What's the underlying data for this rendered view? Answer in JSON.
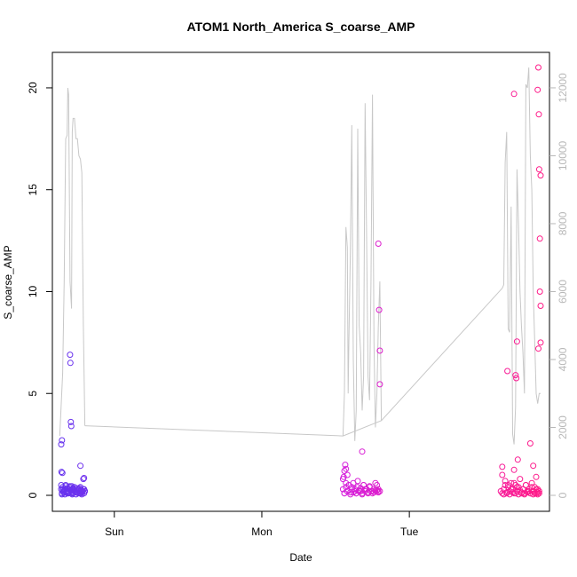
{
  "chart_data": {
    "type": "scatter",
    "title": "ATOM1 North_America S_coarse_AMP",
    "xlabel": "Date",
    "ylabel": "S_coarse_AMP",
    "y2label": "",
    "x_ticks": [
      {
        "label": "Sun",
        "day": 1.0
      },
      {
        "label": "Mon",
        "day": 2.0
      },
      {
        "label": "Tue",
        "day": 3.0
      }
    ],
    "xlim": [
      0.58,
      3.95
    ],
    "ylim": [
      0,
      21
    ],
    "y_ticks": [
      0,
      5,
      10,
      15,
      20
    ],
    "y2lim": [
      0,
      12600
    ],
    "y2_ticks": [
      0,
      2000,
      4000,
      6000,
      8000,
      10000,
      12000
    ],
    "grid": false,
    "legend": "none",
    "series": [
      {
        "kind": "points",
        "color_start": "#6633ee",
        "color_mid": "#cc22ee",
        "color_end": "#ff1a88",
        "x": [
          0.64,
          0.645,
          0.65,
          0.655,
          0.66,
          0.665,
          0.67,
          0.675,
          0.68,
          0.685,
          0.69,
          0.695,
          0.7,
          0.705,
          0.71,
          0.715,
          0.72,
          0.725,
          0.73,
          0.735,
          0.74,
          0.745,
          0.75,
          0.755,
          0.76,
          0.765,
          0.77,
          0.775,
          0.78,
          0.785,
          0.79,
          0.795,
          0.8,
          0.64,
          0.65,
          0.66,
          0.67,
          0.68,
          0.7,
          0.72,
          0.74,
          0.76,
          0.78,
          0.8,
          0.645,
          0.655,
          0.665,
          0.675,
          0.685,
          0.695,
          0.705,
          0.715,
          0.725,
          0.735,
          0.745,
          0.755,
          0.765,
          0.775,
          0.785,
          0.795,
          0.645,
          0.64,
          0.648,
          0.642,
          0.7,
          0.702,
          0.705,
          0.708,
          0.712,
          0.79,
          0.795,
          0.77,
          0.782,
          0.755,
          0.725,
          0.69,
          0.715,
          2.55,
          2.56,
          2.57,
          2.58,
          2.59,
          2.6,
          2.61,
          2.62,
          2.63,
          2.64,
          2.65,
          2.66,
          2.67,
          2.68,
          2.69,
          2.7,
          2.71,
          2.72,
          2.73,
          2.74,
          2.75,
          2.76,
          2.77,
          2.78,
          2.79,
          2.8,
          2.55,
          2.57,
          2.59,
          2.61,
          2.63,
          2.65,
          2.67,
          2.69,
          2.71,
          2.73,
          2.75,
          2.77,
          2.79,
          2.56,
          2.58,
          2.6,
          2.62,
          2.64,
          2.66,
          2.68,
          2.7,
          2.72,
          2.74,
          2.76,
          2.78,
          2.555,
          2.56,
          2.565,
          2.57,
          2.58,
          2.68,
          2.79,
          2.795,
          2.8,
          2.8,
          2.79,
          3.62,
          3.63,
          3.64,
          3.65,
          3.66,
          3.67,
          3.68,
          3.69,
          3.7,
          3.71,
          3.72,
          3.73,
          3.74,
          3.75,
          3.76,
          3.77,
          3.78,
          3.79,
          3.8,
          3.81,
          3.82,
          3.83,
          3.84,
          3.85,
          3.86,
          3.87,
          3.88,
          3.63,
          3.65,
          3.67,
          3.69,
          3.71,
          3.73,
          3.75,
          3.77,
          3.79,
          3.81,
          3.83,
          3.85,
          3.87,
          3.64,
          3.66,
          3.68,
          3.7,
          3.72,
          3.74,
          3.76,
          3.78,
          3.8,
          3.82,
          3.84,
          3.86,
          3.87,
          3.88,
          3.875,
          3.87,
          3.878,
          3.88,
          3.89,
          3.885,
          3.885,
          3.89,
          3.89,
          3.875,
          3.71,
          3.72,
          3.725,
          3.73,
          3.735,
          3.665,
          3.71,
          3.82,
          3.63,
          3.84,
          3.86
        ],
        "y": [
          0.3,
          0.1,
          0.4,
          0.2,
          0.25,
          0.05,
          0.5,
          0.15,
          0.35,
          0.2,
          0.1,
          0.3,
          0.45,
          0.2,
          0.15,
          0.3,
          0.1,
          0.25,
          0.4,
          0.2,
          0.05,
          0.35,
          0.15,
          0.3,
          0.2,
          0.1,
          0.4,
          0.25,
          0.15,
          0.2,
          0.3,
          0.1,
          0.2,
          0.5,
          0.3,
          0.2,
          0.45,
          0.1,
          0.25,
          0.35,
          0.15,
          0.3,
          0.05,
          0.2,
          0.05,
          0.15,
          0.3,
          0.2,
          0.1,
          0.4,
          0.2,
          0.1,
          0.3,
          0.2,
          0.15,
          0.25,
          0.35,
          0.1,
          0.2,
          0.3,
          2.7,
          2.5,
          1.1,
          1.15,
          6.9,
          6.5,
          3.6,
          3.4,
          0.45,
          0.8,
          0.85,
          1.45,
          0.2,
          0.1,
          0.3,
          0.15,
          0.05,
          0.3,
          0.1,
          0.4,
          0.2,
          0.5,
          0.15,
          0.3,
          0.6,
          0.2,
          0.1,
          0.4,
          0.25,
          0.35,
          0.1,
          0.5,
          0.2,
          0.3,
          0.15,
          0.45,
          0.2,
          0.1,
          0.3,
          0.25,
          0.5,
          0.15,
          0.2,
          0.8,
          0.6,
          0.5,
          0.4,
          0.3,
          0.7,
          0.2,
          0.5,
          0.3,
          0.4,
          0.2,
          0.6,
          0.3,
          0.1,
          0.2,
          0.05,
          0.15,
          0.1,
          0.2,
          0.05,
          0.3,
          0.1,
          0.2,
          0.15,
          0.25,
          0.9,
          1.2,
          1.5,
          1.3,
          1.0,
          2.15,
          12.35,
          9.1,
          7.1,
          5.45,
          0.2,
          0.2,
          0.1,
          0.3,
          0.5,
          0.15,
          0.4,
          0.2,
          0.6,
          0.3,
          0.1,
          0.5,
          0.2,
          0.4,
          0.25,
          0.15,
          0.3,
          0.1,
          0.5,
          0.2,
          0.3,
          0.1,
          0.4,
          0.2,
          0.1,
          0.3,
          0.15,
          0.2,
          1.0,
          0.7,
          0.5,
          0.3,
          0.6,
          0.4,
          0.8,
          0.3,
          0.5,
          0.2,
          0.6,
          0.4,
          0.3,
          0.05,
          0.1,
          0.05,
          0.15,
          0.1,
          0.05,
          0.1,
          0.05,
          0.15,
          0.1,
          0.05,
          0.1,
          0.05,
          0.1,
          21.0,
          19.9,
          18.7,
          16.0,
          15.7,
          12.6,
          10.0,
          9.3,
          7.5,
          7.2,
          19.7,
          5.9,
          5.75,
          7.55,
          1.75,
          6.1,
          1.25,
          2.55,
          1.4,
          1.45,
          0.9
        ]
      },
      {
        "kind": "line",
        "axis": "right",
        "color": "#c8c8c8",
        "x": [
          0.63,
          0.65,
          0.66,
          0.67,
          0.68,
          0.685,
          0.69,
          0.7,
          0.71,
          0.715,
          0.72,
          0.73,
          0.74,
          0.75,
          0.76,
          0.77,
          0.78,
          0.79,
          0.8,
          2.55,
          2.56,
          2.57,
          2.58,
          2.585,
          2.59,
          2.6,
          2.61,
          2.62,
          2.63,
          2.64,
          2.65,
          2.66,
          2.67,
          2.68,
          2.69,
          2.7,
          2.71,
          2.72,
          2.73,
          2.74,
          2.75,
          2.76,
          2.77,
          2.78,
          2.79,
          2.8,
          2.81,
          3.63,
          3.64,
          3.65,
          3.66,
          3.67,
          3.68,
          3.69,
          3.7,
          3.71,
          3.72,
          3.73,
          3.74,
          3.75,
          3.76,
          3.77,
          3.78,
          3.79,
          3.8,
          3.81,
          3.82,
          3.83,
          3.84,
          3.85,
          3.86,
          3.87,
          3.88,
          3.89
        ],
        "y": [
          1750,
          3600,
          6300,
          10500,
          10600,
          12000,
          11800,
          6300,
          5500,
          10700,
          11100,
          11100,
          10500,
          10500,
          10000,
          9900,
          9500,
          5000,
          2050,
          1750,
          3000,
          7900,
          7300,
          3000,
          4500,
          7200,
          10900,
          4000,
          1600,
          2500,
          10800,
          5000,
          4200,
          2500,
          3500,
          11550,
          7800,
          3500,
          2800,
          6200,
          11800,
          4500,
          2000,
          3000,
          5000,
          6300,
          2200,
          6100,
          6200,
          9800,
          10700,
          4900,
          4800,
          8500,
          1800,
          1500,
          2600,
          9600,
          8000,
          6000,
          5000,
          4200,
          3000,
          12100,
          12000,
          12600,
          10000,
          9000,
          6000,
          4500,
          3000,
          2700,
          3000,
          3000
        ]
      },
      {
        "kind": "connector",
        "axis": "right",
        "color": "#c8c8c8",
        "x": [
          0.8,
          2.55,
          2.81,
          3.63
        ],
        "y": [
          2050,
          1750,
          2200,
          6100
        ]
      }
    ]
  }
}
